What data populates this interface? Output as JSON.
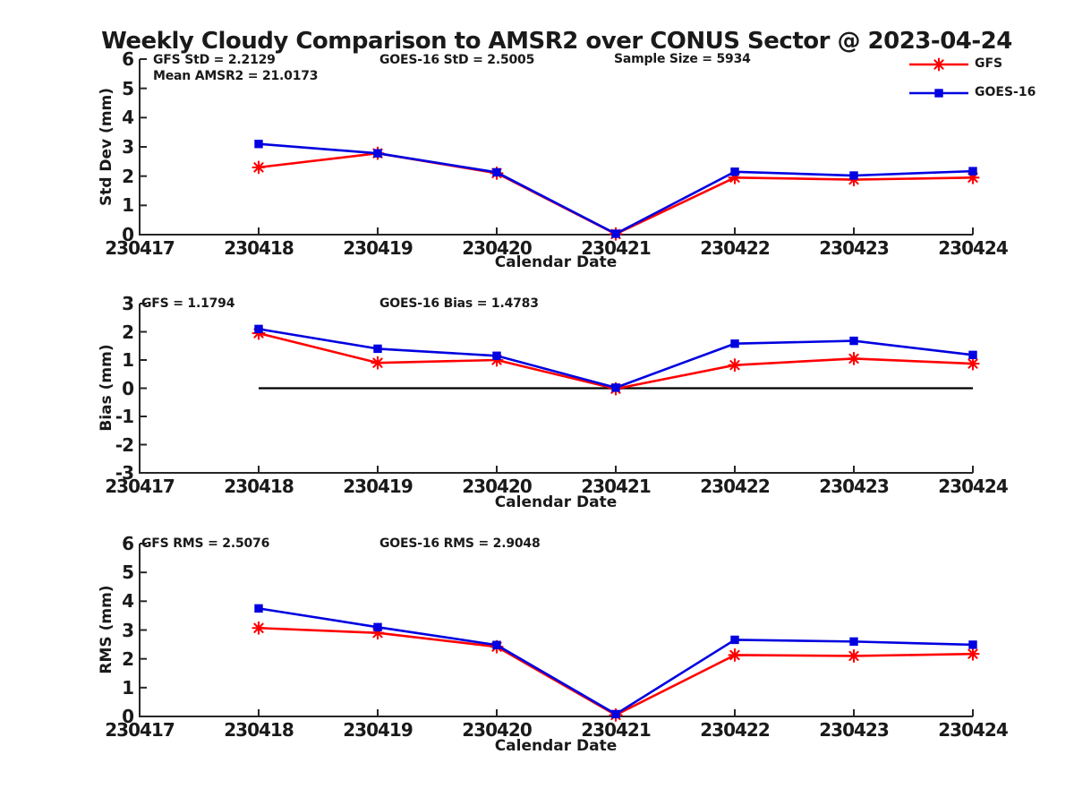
{
  "title": "Weekly Cloudy Comparison to AMSR2 over CONUS Sector @ 2023-04-24",
  "x_axis_label": "Calendar Date",
  "x_ticks": [
    "230417",
    "230418",
    "230419",
    "230420",
    "230421",
    "230422",
    "230423",
    "230424"
  ],
  "colors": {
    "gfs": "#ff0000",
    "goes16": "#0000e0",
    "axis": "#262626",
    "zero_line": "#000000",
    "background": "#ffffff"
  },
  "legend": {
    "position": "top-right",
    "items": [
      {
        "label": "GFS",
        "color": "#ff0000",
        "marker": "star"
      },
      {
        "label": "GOES-16",
        "color": "#0000e0",
        "marker": "square"
      }
    ]
  },
  "chart_data": [
    {
      "type": "line",
      "ylabel": "Std Dev (mm)",
      "xlabel": "Calendar Date",
      "ylim": [
        0,
        6
      ],
      "yticks": [
        0,
        1,
        2,
        3,
        4,
        5,
        6
      ],
      "grid": false,
      "annotations": {
        "left": "GFS StD = 2.2129",
        "left2": "Mean AMSR2 = 21.0173",
        "mid": "GOES-16 StD = 2.5005",
        "right": "Sample Size = 5934"
      },
      "x": [
        "230418",
        "230419",
        "230420",
        "230421",
        "230422",
        "230423",
        "230424"
      ],
      "series": [
        {
          "name": "GFS",
          "marker": "star",
          "values": [
            2.3,
            2.78,
            2.1,
            0.02,
            1.95,
            1.88,
            1.95
          ]
        },
        {
          "name": "GOES-16",
          "marker": "square",
          "values": [
            3.1,
            2.78,
            2.13,
            0.03,
            2.15,
            2.02,
            2.17
          ]
        }
      ]
    },
    {
      "type": "line",
      "ylabel": "Bias (mm)",
      "xlabel": "Calendar Date",
      "ylim": [
        -3,
        3
      ],
      "yticks": [
        -3,
        -2,
        -1,
        0,
        1,
        2,
        3
      ],
      "grid": false,
      "zero_line": true,
      "annotations": {
        "left": "GFS = 1.1794",
        "mid": "GOES-16 Bias  = 1.4783"
      },
      "x": [
        "230418",
        "230419",
        "230420",
        "230421",
        "230422",
        "230423",
        "230424"
      ],
      "series": [
        {
          "name": "GFS",
          "marker": "star",
          "values": [
            1.95,
            0.9,
            1.0,
            -0.02,
            0.82,
            1.05,
            0.87
          ]
        },
        {
          "name": "GOES-16",
          "marker": "square",
          "values": [
            2.1,
            1.4,
            1.15,
            0.02,
            1.58,
            1.68,
            1.18
          ]
        }
      ]
    },
    {
      "type": "line",
      "ylabel": "RMS (mm)",
      "xlabel": "Calendar Date",
      "ylim": [
        0,
        6
      ],
      "yticks": [
        0,
        1,
        2,
        3,
        4,
        5,
        6
      ],
      "grid": false,
      "annotations": {
        "left": "GFS RMS = 2.5076",
        "mid": "GOES-16 RMS = 2.9048"
      },
      "x": [
        "230418",
        "230419",
        "230420",
        "230421",
        "230422",
        "230423",
        "230424"
      ],
      "series": [
        {
          "name": "GFS",
          "marker": "star",
          "values": [
            3.07,
            2.9,
            2.42,
            0.05,
            2.13,
            2.1,
            2.17
          ]
        },
        {
          "name": "GOES-16",
          "marker": "square",
          "values": [
            3.75,
            3.1,
            2.48,
            0.08,
            2.66,
            2.6,
            2.49
          ]
        }
      ]
    }
  ]
}
